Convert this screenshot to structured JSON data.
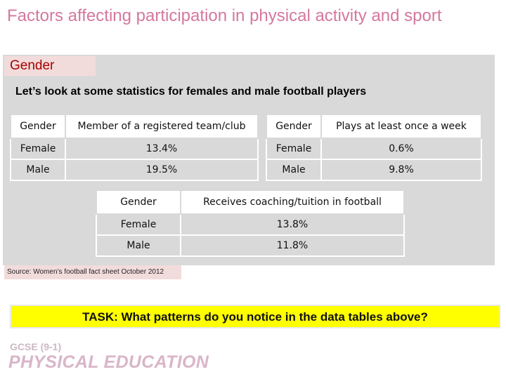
{
  "slide": {
    "title": "Factors affecting participation in physical activity and sport",
    "section_label": "Gender",
    "intro": "Let’s look at some statistics for females and male football players"
  },
  "tables": {
    "team": {
      "headers": [
        "Gender",
        "Member of a registered team/club"
      ],
      "rows": [
        [
          "Female",
          "13.4%"
        ],
        [
          "Male",
          "19.5%"
        ]
      ]
    },
    "weekly": {
      "headers": [
        "Gender",
        "Plays at least once a week"
      ],
      "rows": [
        [
          "Female",
          "0.6%"
        ],
        [
          "Male",
          "9.8%"
        ]
      ]
    },
    "coaching": {
      "headers": [
        "Gender",
        "Receives coaching/tuition in football"
      ],
      "rows": [
        [
          "Female",
          "13.8%"
        ],
        [
          "Male",
          "11.8%"
        ]
      ]
    }
  },
  "source": "Source: Women’s football fact sheet October 2012",
  "task": "TASK: What patterns do you notice in the data tables above?",
  "footer": {
    "qualification": "GCSE (9-1)",
    "subject": "PHYSICAL EDUCATION"
  },
  "colors": {
    "title": "#d4789e",
    "panel": "#d9d9d9",
    "label_bg": "#f2dcdb",
    "label_text": "#a80000",
    "task_bg": "#ffff00"
  }
}
